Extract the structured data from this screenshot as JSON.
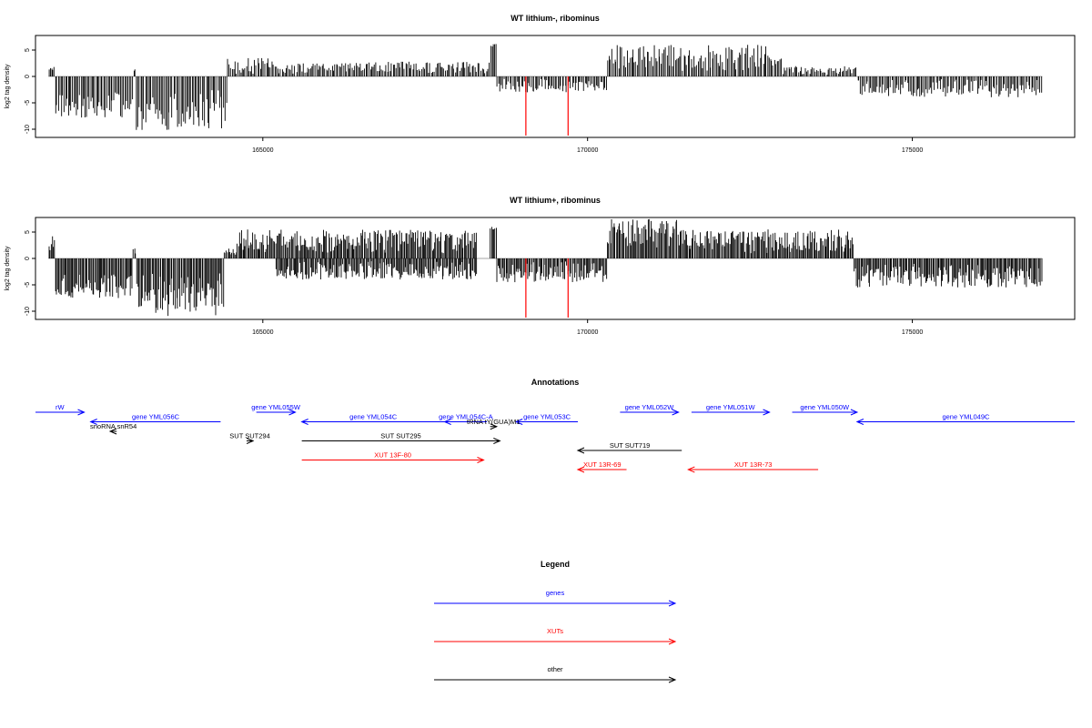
{
  "chart_data": [
    {
      "type": "bar",
      "title": "WT lithium-, ribominus",
      "ylabel": "log2 tag density",
      "xlim": [
        161500,
        177500
      ],
      "ylim": [
        -12,
        8
      ],
      "xticks": [
        165000,
        170000,
        175000
      ],
      "yticks": [
        -10,
        -5,
        0,
        5
      ],
      "sign_segments": [
        {
          "from": 161700,
          "to": 161800,
          "sign": 1,
          "min": 0.8,
          "max": 2.6
        },
        {
          "from": 161800,
          "to": 163000,
          "sign": -1,
          "min": 3.0,
          "max": 7.8
        },
        {
          "from": 163000,
          "to": 163050,
          "sign": 1,
          "min": 0.5,
          "max": 1.5
        },
        {
          "from": 163050,
          "to": 164450,
          "sign": -1,
          "min": 2.5,
          "max": 10.5
        },
        {
          "from": 164450,
          "to": 165200,
          "sign": 1,
          "min": 0.5,
          "max": 3.5
        },
        {
          "from": 165200,
          "to": 166300,
          "sign": 1,
          "min": 0.5,
          "max": 2.5
        },
        {
          "from": 166300,
          "to": 168500,
          "sign": 1,
          "min": 0.5,
          "max": 2.8
        },
        {
          "from": 168500,
          "to": 168600,
          "sign": 1,
          "min": 5.5,
          "max": 6.2
        },
        {
          "from": 168600,
          "to": 170300,
          "sign": -1,
          "min": 0.5,
          "max": 3.0
        },
        {
          "from": 170300,
          "to": 173000,
          "sign": 1,
          "min": 1.0,
          "max": 6.0
        },
        {
          "from": 173000,
          "to": 174150,
          "sign": 1,
          "min": 0.3,
          "max": 2.0
        },
        {
          "from": 174150,
          "to": 177000,
          "sign": -1,
          "min": 0.5,
          "max": 4.0
        }
      ],
      "bar_count": 700,
      "red_lines": [
        {
          "x": 169050,
          "y": -11.2
        },
        {
          "x": 169700,
          "y": -11.2
        }
      ]
    },
    {
      "type": "bar",
      "title": "WT lithium+, ribominus",
      "ylabel": "log2 tag density",
      "xlim": [
        161500,
        177500
      ],
      "ylim": [
        -12,
        8
      ],
      "xticks": [
        165000,
        170000,
        175000
      ],
      "yticks": [
        -10,
        -5,
        0,
        5
      ],
      "sign_segments": [
        {
          "from": 161700,
          "to": 161800,
          "sign": 1,
          "min": 1.5,
          "max": 4.5
        },
        {
          "from": 161800,
          "to": 163000,
          "sign": -1,
          "min": 3.0,
          "max": 7.5
        },
        {
          "from": 163000,
          "to": 163050,
          "sign": 1,
          "min": 0.5,
          "max": 2.0
        },
        {
          "from": 163050,
          "to": 164400,
          "sign": -1,
          "min": 2.5,
          "max": 11.0
        },
        {
          "from": 164400,
          "to": 164600,
          "sign": 1,
          "min": 0.5,
          "max": 2.0
        },
        {
          "from": 164600,
          "to": 168300,
          "sign": 1,
          "min": 1.0,
          "max": 5.5
        },
        {
          "from": 165200,
          "to": 168300,
          "sign": -1,
          "min": 0.5,
          "max": 4.0
        },
        {
          "from": 168500,
          "to": 168600,
          "sign": 1,
          "min": 5.5,
          "max": 6.0
        },
        {
          "from": 168600,
          "to": 170300,
          "sign": -1,
          "min": 0.5,
          "max": 4.5
        },
        {
          "from": 170300,
          "to": 171400,
          "sign": 1,
          "min": 2.0,
          "max": 7.5
        },
        {
          "from": 171400,
          "to": 174100,
          "sign": 1,
          "min": 1.0,
          "max": 5.5
        },
        {
          "from": 174100,
          "to": 177000,
          "sign": -1,
          "min": 1.0,
          "max": 5.5
        }
      ],
      "bar_count": 900,
      "red_lines": [
        {
          "x": 169050,
          "y": -11.2
        },
        {
          "x": 169700,
          "y": -11.2
        }
      ]
    }
  ],
  "annotations": {
    "title": "Annotations",
    "colors": {
      "gene": "#0000ff",
      "xut": "#ff0000",
      "other": "#000000"
    },
    "features": [
      {
        "label": "rW",
        "class": "gene",
        "start": 161500,
        "end": 162250,
        "row": 0,
        "dir": "fwd"
      },
      {
        "label": "gene YML056C",
        "class": "gene",
        "start": 162350,
        "end": 164350,
        "row": 1,
        "dir": "rev"
      },
      {
        "label": "gene YML055W",
        "class": "gene",
        "start": 164900,
        "end": 165500,
        "row": 0,
        "dir": "fwd"
      },
      {
        "label": "gene YML054C",
        "class": "gene",
        "start": 165600,
        "end": 167800,
        "row": 1,
        "dir": "rev"
      },
      {
        "label": "gene YML054C-A",
        "class": "gene",
        "start": 167800,
        "end": 168450,
        "row": 1,
        "dir": "rev"
      },
      {
        "label": "gene YML053C",
        "class": "gene",
        "start": 168900,
        "end": 169850,
        "row": 1,
        "dir": "rev"
      },
      {
        "label": "gene YML052W",
        "class": "gene",
        "start": 170500,
        "end": 171400,
        "row": 0,
        "dir": "fwd"
      },
      {
        "label": "gene YML051W",
        "class": "gene",
        "start": 171600,
        "end": 172800,
        "row": 0,
        "dir": "fwd"
      },
      {
        "label": "gene YML050W",
        "class": "gene",
        "start": 173150,
        "end": 174150,
        "row": 0,
        "dir": "fwd"
      },
      {
        "label": "gene YML049C",
        "class": "gene",
        "start": 174150,
        "end": 177500,
        "row": 1,
        "dir": "rev"
      },
      {
        "label": "snoRNA snR54",
        "class": "other",
        "start": 162650,
        "end": 162750,
        "row": 2,
        "dir": "rev"
      },
      {
        "label": "tRNA tY(GUA)M1",
        "class": "other",
        "start": 168500,
        "end": 168600,
        "row": 1.5,
        "dir": "fwd"
      },
      {
        "label": "SUT SUT294",
        "class": "other",
        "start": 164750,
        "end": 164850,
        "row": 3,
        "dir": "fwd"
      },
      {
        "label": "SUT SUT295",
        "class": "other",
        "start": 165600,
        "end": 168650,
        "row": 3,
        "dir": "fwd"
      },
      {
        "label": "SUT SUT719",
        "class": "other",
        "start": 169850,
        "end": 171450,
        "row": 4,
        "dir": "rev"
      },
      {
        "label": "XUT 13F-80",
        "class": "xut",
        "start": 165600,
        "end": 168400,
        "row": 5,
        "dir": "fwd"
      },
      {
        "label": "XUT 13R-69",
        "class": "xut",
        "start": 169850,
        "end": 170600,
        "row": 6,
        "dir": "rev"
      },
      {
        "label": "XUT 13R-73",
        "class": "xut",
        "start": 171550,
        "end": 173550,
        "row": 6,
        "dir": "rev"
      }
    ]
  },
  "legend": {
    "title": "Legend",
    "entries": [
      {
        "label": "genes",
        "class": "gene"
      },
      {
        "label": "XUTs",
        "class": "xut"
      },
      {
        "label": "other",
        "class": "other"
      }
    ]
  }
}
